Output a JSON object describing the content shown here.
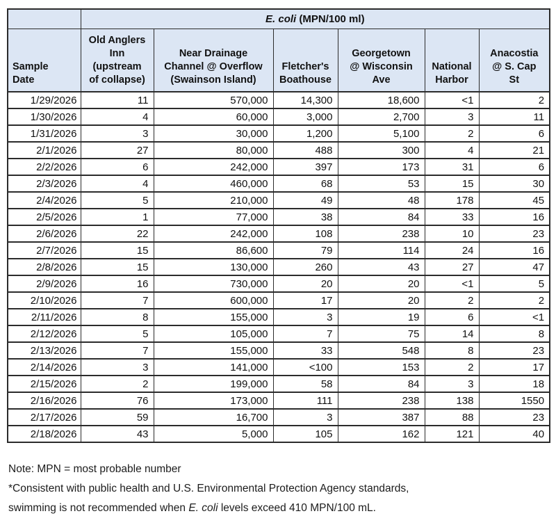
{
  "table": {
    "title": {
      "italic": "E. coli",
      "rest": " (MPN/100 ml)"
    },
    "columns": [
      {
        "label": "Sample\nDate"
      },
      {
        "label": "Old Anglers\nInn\n(upstream\nof collapse)"
      },
      {
        "label": "Near Drainage\nChannel @ Overflow\n(Swainson Island)"
      },
      {
        "label": "Fletcher's\nBoathouse"
      },
      {
        "label": "Georgetown\n@ Wisconsin\nAve"
      },
      {
        "label": "National\nHarbor"
      },
      {
        "label": "Anacostia\n@ S. Cap\nSt"
      }
    ],
    "rows": [
      [
        "1/29/2026",
        "11",
        "570,000",
        "14,300",
        "18,600",
        "<1",
        "2"
      ],
      [
        "1/30/2026",
        "4",
        "60,000",
        "3,000",
        "2,700",
        "3",
        "11"
      ],
      [
        "1/31/2026",
        "3",
        "30,000",
        "1,200",
        "5,100",
        "2",
        "6"
      ],
      [
        "2/1/2026",
        "27",
        "80,000",
        "488",
        "300",
        "4",
        "21"
      ],
      [
        "2/2/2026",
        "6",
        "242,000",
        "397",
        "173",
        "31",
        "6"
      ],
      [
        "2/3/2026",
        "4",
        "460,000",
        "68",
        "53",
        "15",
        "30"
      ],
      [
        "2/4/2026",
        "5",
        "210,000",
        "49",
        "48",
        "178",
        "45"
      ],
      [
        "2/5/2026",
        "1",
        "77,000",
        "38",
        "84",
        "33",
        "16"
      ],
      [
        "2/6/2026",
        "22",
        "242,000",
        "108",
        "238",
        "10",
        "23"
      ],
      [
        "2/7/2026",
        "15",
        "86,600",
        "79",
        "114",
        "24",
        "16"
      ],
      [
        "2/8/2026",
        "15",
        "130,000",
        "260",
        "43",
        "27",
        "47"
      ],
      [
        "2/9/2026",
        "16",
        "730,000",
        "20",
        "20",
        "<1",
        "5"
      ],
      [
        "2/10/2026",
        "7",
        "600,000",
        "17",
        "20",
        "2",
        "2"
      ],
      [
        "2/11/2026",
        "8",
        "155,000",
        "3",
        "19",
        "6",
        "<1"
      ],
      [
        "2/12/2026",
        "5",
        "105,000",
        "7",
        "75",
        "14",
        "8"
      ],
      [
        "2/13/2026",
        "7",
        "155,000",
        "33",
        "548",
        "8",
        "23"
      ],
      [
        "2/14/2026",
        "3",
        "141,000",
        "<100",
        "153",
        "2",
        "17"
      ],
      [
        "2/15/2026",
        "2",
        "199,000",
        "58",
        "84",
        "3",
        "18"
      ],
      [
        "2/16/2026",
        "76",
        "173,000",
        "111",
        "238",
        "138",
        "1550"
      ],
      [
        "2/17/2026",
        "59",
        "16,700",
        "3",
        "387",
        "88",
        "23"
      ],
      [
        "2/18/2026",
        "43",
        "5,000",
        "105",
        "162",
        "121",
        "40"
      ]
    ]
  },
  "notes": {
    "line1": "Note: MPN = most probable number",
    "line2": "*Consistent with public health and U.S. Environmental Protection Agency standards,",
    "line3_prefix": "swimming is not recommended when ",
    "line3_italic": "E. coli",
    "line3_suffix": " levels exceed 410 MPN/100 mL."
  },
  "colors": {
    "header_bg": "#dce6f4",
    "border": "#2b2b2b",
    "text": "#111111"
  }
}
